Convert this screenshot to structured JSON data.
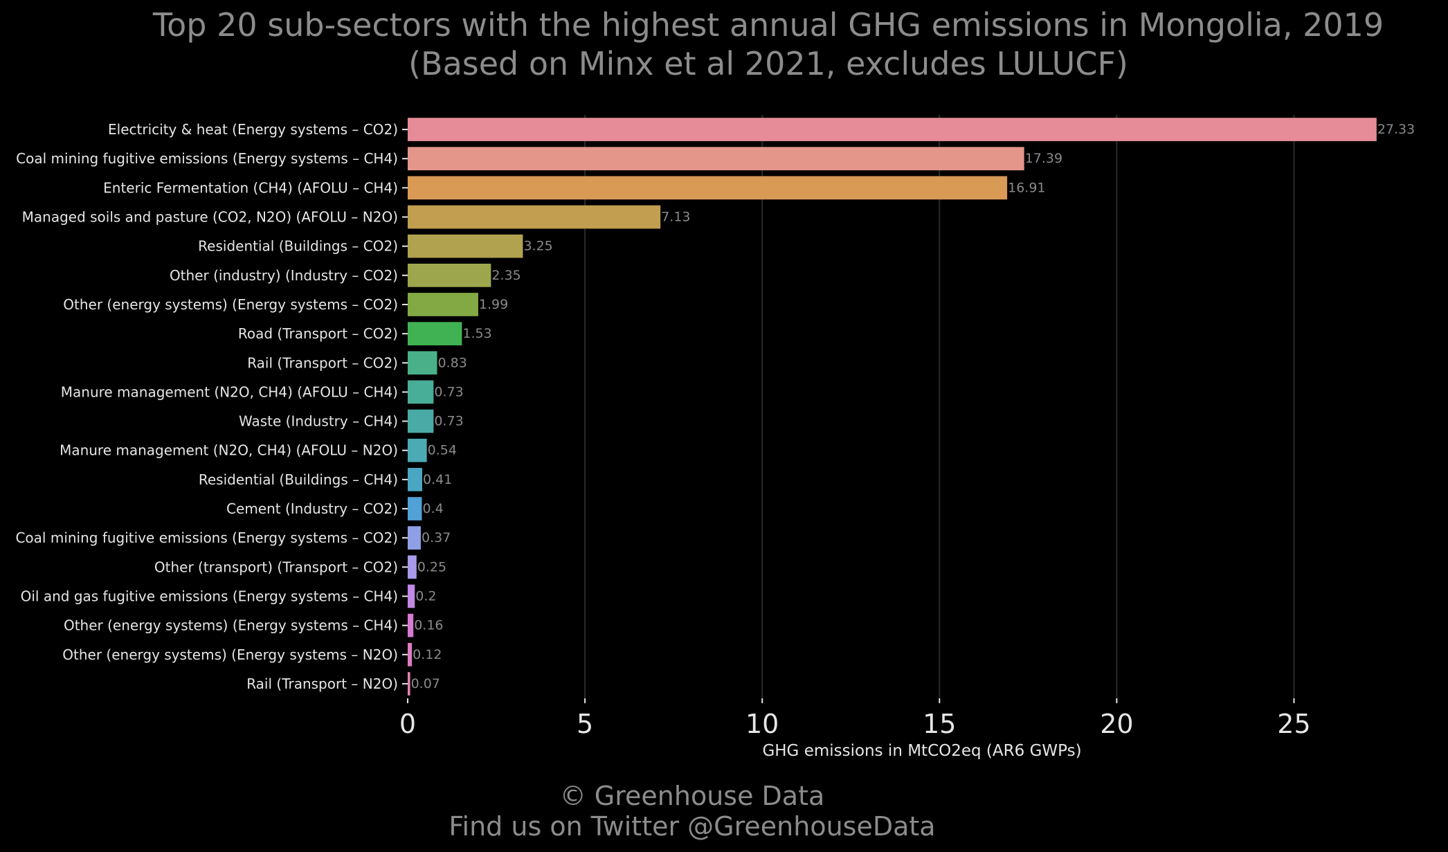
{
  "chart_data": {
    "type": "bar",
    "orientation": "horizontal",
    "title": "Top 20 sub-sectors with the highest annual GHG emissions in Mongolia, 2019",
    "subtitle": "(Based on Minx et al 2021, excludes LULUCF)",
    "xlabel": "GHG emissions in MtCO2eq (AR6 GWPs)",
    "ylabel": "",
    "xlim": [
      0,
      28.7
    ],
    "xticks": [
      "0",
      "5",
      "10",
      "15",
      "20",
      "25"
    ],
    "grid": "vertical",
    "categories": [
      "Electricity & heat (Energy systems – CO2)",
      "Coal mining fugitive emissions (Energy systems – CH4)",
      "Enteric Fermentation (CH4) (AFOLU – CH4)",
      "Managed soils and pasture (CO2, N2O) (AFOLU – N2O)",
      "Residential (Buildings – CO2)",
      "Other (industry) (Industry – CO2)",
      "Other (energy systems) (Energy systems – CO2)",
      "Road (Transport – CO2)",
      "Rail  (Transport – CO2)",
      "Manure management (N2O, CH4) (AFOLU – CH4)",
      "Waste (Industry – CH4)",
      "Manure management (N2O, CH4) (AFOLU – N2O)",
      "Residential (Buildings – CH4)",
      "Cement (Industry – CO2)",
      "Coal mining fugitive emissions (Energy systems – CO2)",
      "Other (transport) (Transport – CO2)",
      "Oil and gas fugitive emissions (Energy systems – CH4)",
      "Other (energy systems) (Energy systems – CH4)",
      "Other (energy systems) (Energy systems – N2O)",
      "Rail  (Transport – N2O)"
    ],
    "values": [
      27.33,
      17.39,
      16.91,
      7.13,
      3.25,
      2.35,
      1.99,
      1.53,
      0.83,
      0.73,
      0.73,
      0.54,
      0.41,
      0.4,
      0.37,
      0.25,
      0.2,
      0.16,
      0.12,
      0.07
    ],
    "value_labels": [
      "27.33",
      "17.39",
      "16.91",
      "7.13",
      "3.25",
      "2.35",
      "1.99",
      "1.53",
      "0.83",
      "0.73",
      "0.73",
      "0.54",
      "0.41",
      "0.4",
      "0.37",
      "0.25",
      "0.2",
      "0.16",
      "0.12",
      "0.07"
    ],
    "colors": [
      "#e68b98",
      "#e5968a",
      "#d99a56",
      "#c19e50",
      "#b0a24e",
      "#9da64d",
      "#83a944",
      "#41b254",
      "#49b08a",
      "#49ae98",
      "#4aaba6",
      "#4caab5",
      "#4ba6c4",
      "#51a1d6",
      "#8f9fe6",
      "#a99aea",
      "#c288e6",
      "#d77ad4",
      "#de7cc3",
      "#e384b2"
    ]
  },
  "footer": {
    "line1": "© Greenhouse Data",
    "line2": "Find us on Twitter @GreenhouseData"
  }
}
